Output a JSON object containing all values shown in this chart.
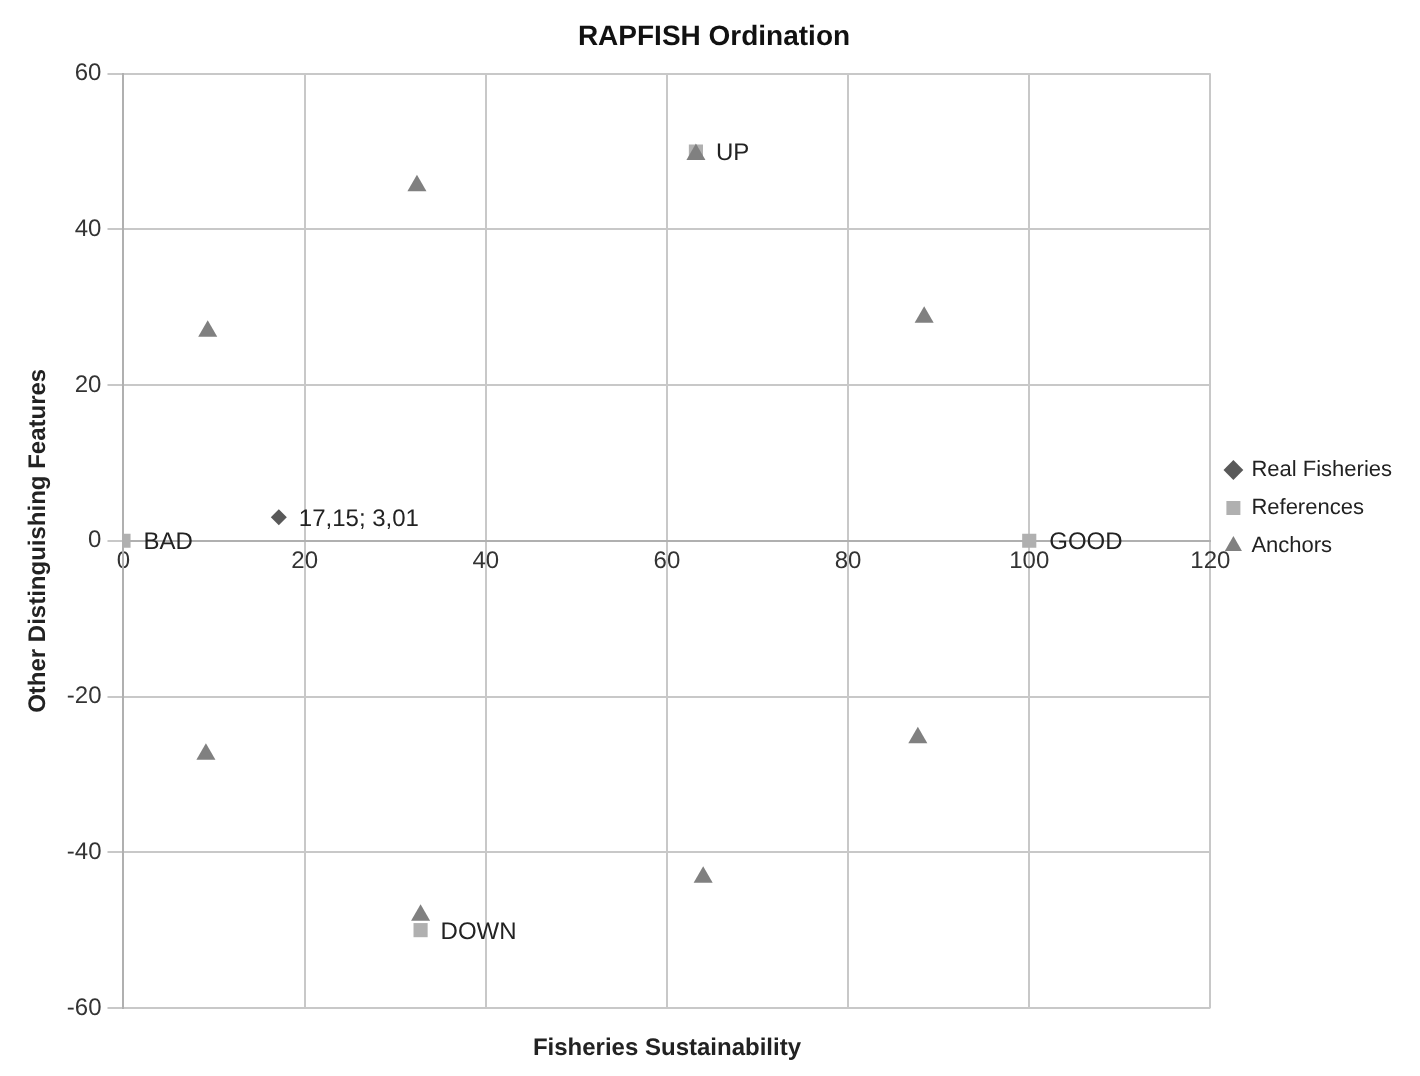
{
  "chart_data": {
    "type": "scatter",
    "title": "RAPFISH Ordination",
    "xlabel": "Fisheries Sustainability",
    "ylabel": "Other Distinguishing Features",
    "xlim": [
      0,
      120
    ],
    "xticks": [
      0,
      20,
      40,
      60,
      80,
      100,
      120
    ],
    "ylim": [
      -60,
      60
    ],
    "yticks": [
      -60,
      -40,
      -20,
      0,
      20,
      40,
      60
    ],
    "grid": true,
    "legend": "right",
    "series": [
      {
        "name": "Real Fisheries",
        "color": "#595959",
        "marker": "diamond",
        "x": [
          17.15
        ],
        "values": [
          3.01
        ]
      },
      {
        "name": "References",
        "color": "#b0b0b0",
        "marker": "square",
        "x": [
          0,
          100,
          63.2,
          32.8
        ],
        "values": [
          0,
          0,
          50,
          -50
        ]
      },
      {
        "name": "Anchors",
        "color": "#808080",
        "marker": "triangle",
        "x": [
          9.3,
          32.4,
          63.2,
          88.4,
          9.1,
          87.7,
          64,
          32.8
        ],
        "values": [
          26.9,
          45.6,
          49.6,
          28.7,
          -27.4,
          -25.3,
          -43.2,
          -48.1
        ]
      }
    ],
    "annotations": [
      {
        "text": "17,15; 3,01",
        "x": 17.15,
        "y": 3.01
      },
      {
        "text": "BAD",
        "x": 0,
        "y": 0
      },
      {
        "text": "GOOD",
        "x": 100,
        "y": 0
      },
      {
        "text": "UP",
        "x": 63.2,
        "y": 50
      },
      {
        "text": "DOWN",
        "x": 32.8,
        "y": -50
      }
    ]
  }
}
